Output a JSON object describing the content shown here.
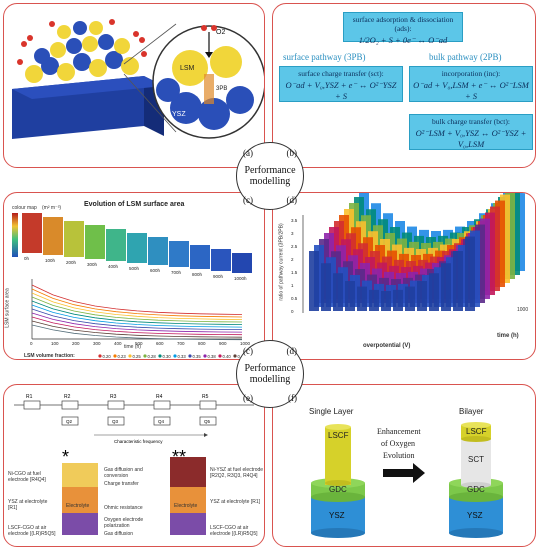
{
  "hub_top": {
    "label_a": "(a)",
    "label_b": "(b)",
    "label_c": "(c)",
    "label_d": "(d)",
    "center_line1": "Performance",
    "center_line2": "modelling"
  },
  "hub_bottom": {
    "label_c": "(c)",
    "label_d": "(d)",
    "label_e": "(e)",
    "label_f": "(f)",
    "center_line1": "Performance",
    "center_line2": "modelling"
  },
  "panel_a": {
    "lsm_label": "LSM",
    "ysz_label": "YSZ",
    "o2_label": "O2",
    "three_pb_label": "3PB"
  },
  "panel_b": {
    "ads_title": "surface adsorption & dissociation (ads):",
    "ads_formula": "1/2O₂ + S + 0e⁻ ↔ O⁻ad",
    "surface_pathway": "surface pathway (3PB)",
    "bulk_pathway": "bulk pathway (2PB)",
    "sct_title": "surface charge transfer (sct):",
    "sct_formula": "O⁻ad + V₀,YSZ + e⁻ ↔ O²⁻YSZ + S",
    "inc_title": "incorporation (inc):",
    "inc_formula": "O⁻ad + V₀,LSM + e⁻ ↔ O²⁻LSM + S",
    "bct_title": "bulk charge transfer (bct):",
    "bct_formula": "O²⁻LSM + V₀,YSZ ↔ O²⁻YSZ + V₀,LSM"
  },
  "panel_c": {
    "title": "Evolution of LSM surface area",
    "colormap_label": "colour map",
    "colormap_unit": "(m² m⁻³)",
    "times": [
      "0h",
      "100h",
      "200h",
      "300h",
      "400h",
      "500h",
      "600h",
      "700h",
      "800h",
      "900h",
      "1000h"
    ],
    "xlabel": "time (h)",
    "ylabel": "LSM surface area",
    "xticks": [
      "0",
      "100",
      "200",
      "300",
      "400",
      "500",
      "600",
      "700",
      "800",
      "900",
      "1000"
    ],
    "legend_title": "LSM volume fraction:",
    "legend_values": [
      "0.20",
      "0.23",
      "0.25",
      "0.28",
      "0.30",
      "0.33",
      "0.35",
      "0.38",
      "0.40",
      "0.43",
      "0.45"
    ]
  },
  "panel_d": {
    "zlabel": "ratio of pathway current (3PB/2PB)",
    "xlabel": "overpotential (V)",
    "ylabel": "time (h)",
    "zticks": [
      "0",
      "0.5",
      "1",
      "1.5",
      "2",
      "2.5",
      "3",
      "3.5"
    ],
    "ytick_max": "1000"
  },
  "panel_e": {
    "circuit_labels": [
      "R1",
      "R2",
      "R3",
      "R4",
      "R5"
    ],
    "element_labels": [
      "Q2",
      "Q3",
      "Q4",
      "Q5"
    ],
    "freq_label": "Characteristic frequency",
    "star1": "*",
    "star2": "**",
    "left_top": "Ni-CGO at fuel electrode [R4Q4]",
    "left_mid": "YSZ at electrolyte [R1]",
    "left_bottom": "LSCF-CGO at air electrode [(LR)R5Q5]",
    "center_items": [
      "Gas diffusion and conversion",
      "Charge transfer",
      "Ohmic resistance",
      "Oxygen electrode polarization",
      "Gas diffusion"
    ],
    "right_top": "Ni-YSZ at fuel electrode [R2Q2, R3Q3, R4Q4]",
    "right_mid": "YSZ at electrolyte [R1]",
    "right_bottom": "LSCF-CGO at air electrode [(LR)R5Q5]",
    "electrolyte": "Electrolyte"
  },
  "panel_f": {
    "single_title": "Single Layer",
    "bilayer_title": "Bilayer",
    "arrow_text_1": "Enhancement",
    "arrow_text_2": "of Oxygen",
    "arrow_text_3": "Evolution",
    "lscf": "LSCF",
    "gdc": "GDC",
    "ysz": "YSZ",
    "sct": "SCT"
  }
}
